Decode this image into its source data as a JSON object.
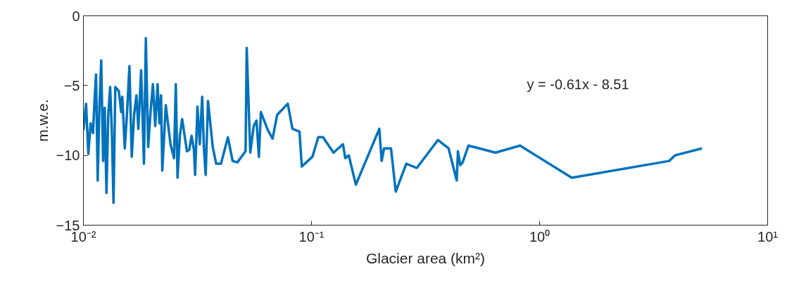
{
  "chart_data": {
    "type": "line",
    "xlabel": "Glacier area (km²)",
    "ylabel": "m.w.e.",
    "annotations": [
      "y = -0.61x - 8.51"
    ],
    "log": "x",
    "grid": false,
    "marker": "none",
    "line_style": "solid",
    "xlim": [
      0.01,
      10
    ],
    "xticks": [
      {
        "value": 0.01,
        "label": "10⁻²"
      },
      {
        "value": 0.1,
        "label": "10⁻¹"
      },
      {
        "value": 1,
        "label": "10⁰"
      },
      {
        "value": 10,
        "label": "10¹"
      }
    ],
    "ylim": [
      -15,
      0
    ],
    "yticks": [
      -15,
      -10,
      -5,
      0
    ],
    "series": [
      {
        "color": "#0072bd",
        "x": [
          0.01,
          0.01027,
          0.01051,
          0.01076,
          0.01102,
          0.0112,
          0.01136,
          0.01155,
          0.01175,
          0.01197,
          0.0122,
          0.0124,
          0.01262,
          0.01285,
          0.0131,
          0.01332,
          0.01355,
          0.0138,
          0.0143,
          0.01465,
          0.01481,
          0.01518,
          0.01554,
          0.01591,
          0.01629,
          0.01668,
          0.01708,
          0.01741,
          0.01791,
          0.01843,
          0.01878,
          0.01923,
          0.01969,
          0.02017,
          0.02065,
          0.02114,
          0.02154,
          0.0219,
          0.02217,
          0.02297,
          0.02409,
          0.02496,
          0.02542,
          0.02586,
          0.02647,
          0.0271,
          0.02843,
          0.0291,
          0.02981,
          0.03052,
          0.03089,
          0.03162,
          0.03237,
          0.03316,
          0.03378,
          0.03437,
          0.03518,
          0.0369,
          0.0382,
          0.0401,
          0.043,
          0.0451,
          0.0473,
          0.0514,
          0.052,
          0.0539,
          0.0558,
          0.0574,
          0.0588,
          0.06,
          0.0644,
          0.0675,
          0.0707,
          0.0787,
          0.0825,
          0.0886,
          0.0907,
          0.1009,
          0.1071,
          0.1123,
          0.1249,
          0.1374,
          0.1407,
          0.1457,
          0.1565,
          0.1983,
          0.2031,
          0.208,
          0.2232,
          0.2341,
          0.2604,
          0.2898,
          0.3586,
          0.399,
          0.4333,
          0.4386,
          0.449,
          0.4599,
          0.4878,
          0.6405,
          0.8213,
          1.384,
          3.698,
          3.923,
          5.152
        ],
        "values": [
          -8.2,
          -6.3,
          -9.9,
          -7.7,
          -8.4,
          -5.9,
          -4.2,
          -11.8,
          -6.6,
          -3.2,
          -10.4,
          -6.6,
          -12.7,
          -7.1,
          -5.1,
          -8.2,
          -13.4,
          -5.1,
          -5.4,
          -6.9,
          -5.8,
          -9.5,
          -6.9,
          -3.6,
          -10.1,
          -7.1,
          -5.7,
          -8.1,
          -3.9,
          -10.6,
          -1.6,
          -9.4,
          -6.9,
          -4.9,
          -7.9,
          -4.9,
          -7.7,
          -5.7,
          -11.1,
          -6.4,
          -9.2,
          -10.2,
          -4.9,
          -11.6,
          -8.6,
          -7.4,
          -9.7,
          -9.6,
          -8.6,
          -9.6,
          -11.4,
          -6.5,
          -9.2,
          -5.8,
          -9.6,
          -11.4,
          -6.1,
          -9.4,
          -10.6,
          -10.6,
          -8.7,
          -10.4,
          -10.5,
          -9.7,
          -2.3,
          -9.8,
          -7.9,
          -7.5,
          -10.1,
          -6.9,
          -8.2,
          -8.8,
          -7.1,
          -6.3,
          -8.1,
          -8.3,
          -10.8,
          -10.1,
          -8.7,
          -8.7,
          -9.8,
          -9.2,
          -10.2,
          -10.0,
          -12.1,
          -8.1,
          -10.4,
          -9.5,
          -9.5,
          -12.6,
          -10.6,
          -10.9,
          -8.9,
          -9.5,
          -11.8,
          -9.7,
          -10.7,
          -10.5,
          -9.3,
          -9.8,
          -9.3,
          -11.6,
          -10.4,
          -10.0,
          -9.5
        ]
      }
    ]
  }
}
